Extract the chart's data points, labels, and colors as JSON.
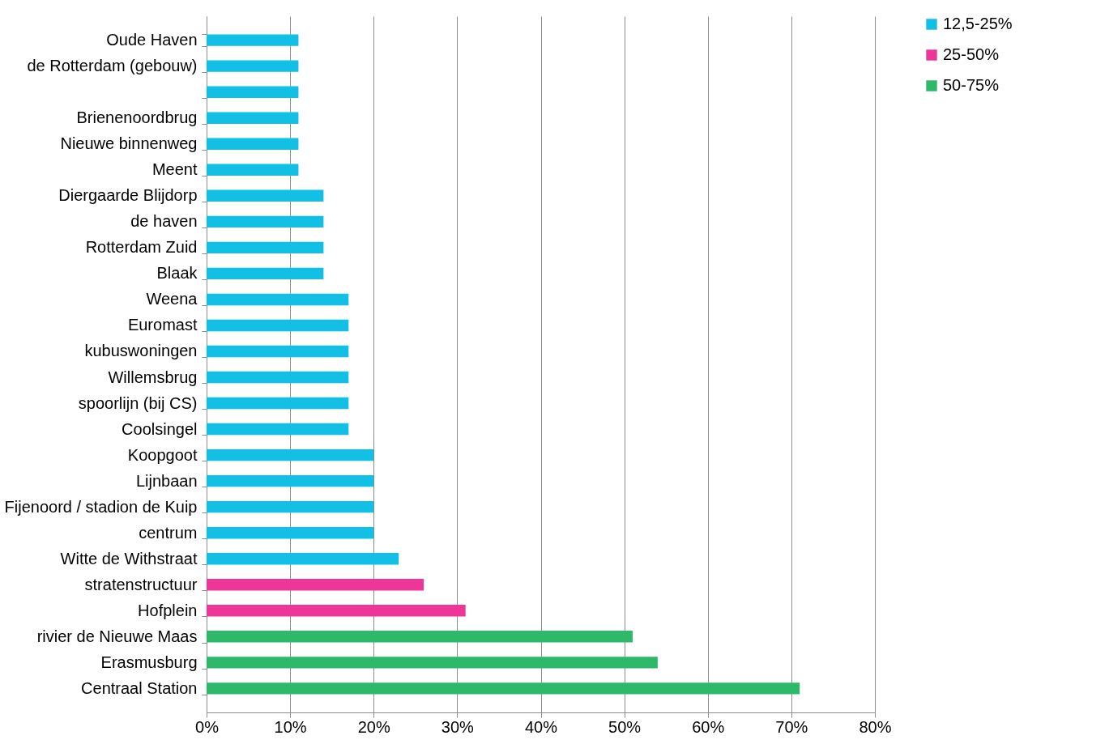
{
  "chart_data": {
    "type": "bar",
    "orientation": "horizontal",
    "categories": [
      "Oude Haven",
      "de Rotterdam (gebouw)",
      null,
      "Brienenoordbrug",
      "Nieuwe binnenweg",
      "Meent",
      "Diergaarde Blijdorp",
      "de haven",
      "Rotterdam Zuid",
      "Blaak",
      "Weena",
      "Euromast",
      "kubuswoningen",
      "Willemsbrug",
      "spoorlijn (bij CS)",
      "Coolsingel",
      "Koopgoot",
      "Lijnbaan",
      "Fijenoord / stadion de Kuip",
      "centrum",
      "Witte de Withstraat",
      "stratenstructuur",
      "Hofplein",
      "rivier de Nieuwe Maas",
      "Erasmusburg",
      "Centraal Station"
    ],
    "series": [
      {
        "name": "12,5-25%",
        "color": "#12bfe6",
        "values": [
          11,
          11,
          11,
          11,
          11,
          11,
          14,
          14,
          14,
          14,
          17,
          17,
          17,
          17,
          17,
          17,
          20,
          20,
          20,
          20,
          23,
          null,
          null,
          null,
          null,
          null
        ]
      },
      {
        "name": "25-50%",
        "color": "#ee3598",
        "values": [
          null,
          null,
          null,
          null,
          null,
          null,
          null,
          null,
          null,
          null,
          null,
          null,
          null,
          null,
          null,
          null,
          null,
          null,
          null,
          null,
          null,
          26,
          31,
          null,
          null,
          null
        ]
      },
      {
        "name": "50-75%",
        "color": "#2db86a",
        "values": [
          null,
          null,
          null,
          null,
          null,
          null,
          null,
          null,
          null,
          null,
          null,
          null,
          null,
          null,
          null,
          null,
          null,
          null,
          null,
          null,
          null,
          null,
          null,
          51,
          54,
          71
        ]
      }
    ],
    "xlim": [
      0,
      80
    ],
    "xticks": [
      {
        "value": 0,
        "label": "0%"
      },
      {
        "value": 10,
        "label": "10%"
      },
      {
        "value": 20,
        "label": "20%"
      },
      {
        "value": 30,
        "label": "30%"
      },
      {
        "value": 40,
        "label": "40%"
      },
      {
        "value": 50,
        "label": "50%"
      },
      {
        "value": 60,
        "label": "60%"
      },
      {
        "value": 70,
        "label": "70%"
      },
      {
        "value": 80,
        "label": "80%"
      }
    ],
    "grid": "x",
    "legend": "right"
  }
}
